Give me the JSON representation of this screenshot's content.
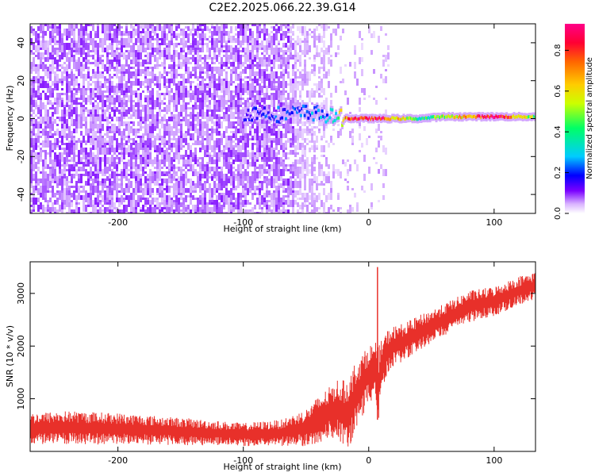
{
  "title": "C2E2.2025.066.22.39.G14",
  "chart_data": [
    {
      "type": "heatmap",
      "xlabel": "Height of straight line (km)",
      "ylabel": "Frequency (Hz)",
      "xlim": [
        -270,
        133
      ],
      "ylim": [
        -50,
        50
      ],
      "x_ticks": [
        -200,
        -100,
        0,
        100
      ],
      "y_ticks": [
        -40,
        -20,
        0,
        20,
        40
      ],
      "colorbar": {
        "label": "Normalized spectral amplitude",
        "range": [
          0.0,
          0.93
        ],
        "ticks": [
          0.0,
          0.2,
          0.4,
          0.6,
          0.8
        ],
        "colormap": [
          "#ffffff",
          "#cc99ff",
          "#7a00ff",
          "#0000ff",
          "#00ccff",
          "#00ff66",
          "#ccff00",
          "#ffcc00",
          "#ff6600",
          "#ff0033",
          "#ff0088"
        ]
      },
      "carrier_line": [
        {
          "x": -100,
          "freq": 3,
          "amp": 0.25
        },
        {
          "x": -80,
          "freq": 3,
          "amp": 0.28
        },
        {
          "x": -70,
          "freq": 2,
          "amp": 0.3
        },
        {
          "x": -55,
          "freq": 3,
          "amp": 0.3
        },
        {
          "x": -45,
          "freq": 3,
          "amp": 0.33
        },
        {
          "x": -30,
          "freq": 1,
          "amp": 0.35
        },
        {
          "x": -15,
          "freq": 0,
          "amp": 0.8
        },
        {
          "x": 0,
          "freq": 0,
          "amp": 0.85
        },
        {
          "x": 15,
          "freq": 0,
          "amp": 0.75
        },
        {
          "x": 40,
          "freq": 0,
          "amp": 0.4
        },
        {
          "x": 60,
          "freq": 1,
          "amp": 0.55
        },
        {
          "x": 80,
          "freq": 1,
          "amp": 0.7
        },
        {
          "x": 100,
          "freq": 1,
          "amp": 0.9
        },
        {
          "x": 120,
          "freq": 1,
          "amp": 0.6
        },
        {
          "x": 133,
          "freq": 1,
          "amp": 0.5
        }
      ],
      "noise_region_x": [
        -270,
        -30
      ]
    },
    {
      "type": "line",
      "xlabel": "Height of straight line (km)",
      "ylabel": "SNR (10 * v/v)",
      "xlim": [
        -270,
        133
      ],
      "ylim": [
        0,
        3600
      ],
      "x_ticks": [
        -200,
        -100,
        0,
        100
      ],
      "y_ticks": [
        1000,
        2000,
        3000
      ],
      "color": "#e8302a",
      "envelope": {
        "x": [
          -270,
          -240,
          -200,
          -150,
          -100,
          -70,
          -50,
          -40,
          -30,
          -25,
          -20,
          -15,
          -10,
          -5,
          0,
          5,
          7,
          10,
          15,
          20,
          30,
          40,
          60,
          80,
          100,
          120,
          133
        ],
        "center": [
          430,
          450,
          430,
          380,
          320,
          350,
          450,
          600,
          750,
          820,
          700,
          750,
          1100,
          1250,
          1500,
          1500,
          1100,
          1600,
          1900,
          2000,
          2100,
          2250,
          2500,
          2750,
          2850,
          3050,
          3150
        ],
        "spread": [
          300,
          320,
          300,
          260,
          220,
          250,
          350,
          450,
          500,
          550,
          650,
          700,
          650,
          600,
          500,
          600,
          900,
          500,
          400,
          380,
          350,
          330,
          300,
          300,
          280,
          280,
          260
        ]
      },
      "peak": {
        "x": 7,
        "y": 3500
      }
    }
  ]
}
